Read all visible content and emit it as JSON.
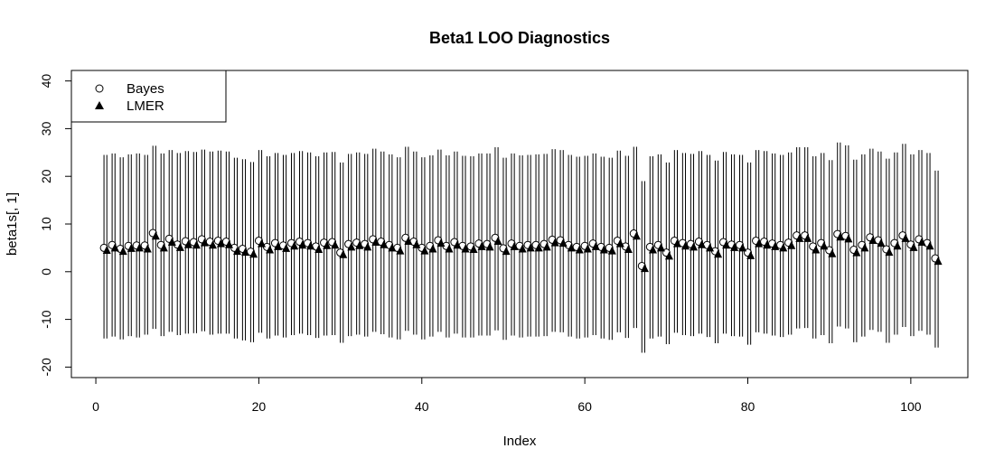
{
  "chart_data": {
    "type": "scatter",
    "title": "Beta1 LOO Diagnostics",
    "xlabel": "Index",
    "ylabel": "beta1s[, 1]",
    "xlim": [
      -3,
      107
    ],
    "ylim": [
      -22.2,
      42.2
    ],
    "x_ticks": [
      0,
      20,
      40,
      60,
      80,
      100
    ],
    "y_ticks": [
      -20,
      -10,
      0,
      10,
      20,
      30,
      40
    ],
    "grid": false,
    "legend": {
      "placement": "top-left",
      "entries": [
        "Bayes",
        "LMER"
      ]
    },
    "x_offset_lmer": 0.35,
    "series": [
      {
        "name": "Bayes",
        "marker": "open-circle",
        "values": [
          5.0,
          5.6,
          4.8,
          5.4,
          5.5,
          5.5,
          8.1,
          5.6,
          6.9,
          5.7,
          6.4,
          6.2,
          6.8,
          6.3,
          6.5,
          6.3,
          5.0,
          4.8,
          4.2,
          6.5,
          5.2,
          6.0,
          5.5,
          6.0,
          6.3,
          6.0,
          5.3,
          6.1,
          6.2,
          4.0,
          5.8,
          6.1,
          5.8,
          6.8,
          6.3,
          5.6,
          5.0,
          7.1,
          6.3,
          5.0,
          5.4,
          6.6,
          5.4,
          6.2,
          5.4,
          5.3,
          5.9,
          5.8,
          7.1,
          4.9,
          5.9,
          5.4,
          5.6,
          5.6,
          5.8,
          6.7,
          6.6,
          5.6,
          5.2,
          5.4,
          5.9,
          5.2,
          5.0,
          6.5,
          5.3,
          8.0,
          1.2,
          5.2,
          5.6,
          4.0,
          6.5,
          6.0,
          5.8,
          6.3,
          5.6,
          4.3,
          6.2,
          5.7,
          5.6,
          4.0,
          6.5,
          6.3,
          5.9,
          5.6,
          6.1,
          7.6,
          7.6,
          5.3,
          6.0,
          4.5,
          7.9,
          7.5,
          4.6,
          5.6,
          7.2,
          6.6,
          4.7,
          6.0,
          7.6,
          5.7,
          6.8,
          6.0,
          2.8
        ]
      },
      {
        "name": "LMER",
        "marker": "filled-triangle",
        "values": [
          4.5,
          5.0,
          4.3,
          4.9,
          5.0,
          4.8,
          7.5,
          5.0,
          6.2,
          5.1,
          5.7,
          5.6,
          6.1,
          5.6,
          5.9,
          5.7,
          4.3,
          4.1,
          3.7,
          5.9,
          4.6,
          5.3,
          4.9,
          5.4,
          5.6,
          5.4,
          4.7,
          5.5,
          5.6,
          3.6,
          5.2,
          5.5,
          5.2,
          6.2,
          5.7,
          5.0,
          4.4,
          6.4,
          5.7,
          4.4,
          4.8,
          6.0,
          4.8,
          5.6,
          4.8,
          4.7,
          5.3,
          5.2,
          6.4,
          4.3,
          5.3,
          4.8,
          5.0,
          5.0,
          5.2,
          6.1,
          6.0,
          5.0,
          4.6,
          4.8,
          5.3,
          4.6,
          4.4,
          5.9,
          4.7,
          7.5,
          0.7,
          4.6,
          5.0,
          3.3,
          5.9,
          5.4,
          5.2,
          5.7,
          5.0,
          3.7,
          5.6,
          5.1,
          5.0,
          3.4,
          5.9,
          5.6,
          5.3,
          5.0,
          5.5,
          7.0,
          7.0,
          4.6,
          5.4,
          3.8,
          7.3,
          6.9,
          4.0,
          5.0,
          6.6,
          6.0,
          4.1,
          5.4,
          7.0,
          5.1,
          6.2,
          5.4,
          2.2
        ]
      }
    ],
    "intervals": {
      "lower": [
        -14.0,
        -13.6,
        -14.2,
        -13.5,
        -13.8,
        -13.2,
        -12.0,
        -13.5,
        -12.6,
        -13.3,
        -13.0,
        -12.9,
        -12.5,
        -13.2,
        -13.0,
        -13.0,
        -14.0,
        -14.4,
        -14.8,
        -12.8,
        -14.0,
        -13.4,
        -13.8,
        -13.3,
        -13.0,
        -13.3,
        -13.9,
        -13.4,
        -13.3,
        -14.9,
        -13.5,
        -13.2,
        -13.6,
        -12.6,
        -13.1,
        -13.8,
        -14.2,
        -12.4,
        -13.2,
        -14.2,
        -13.6,
        -12.6,
        -13.8,
        -13.0,
        -13.8,
        -13.8,
        -13.4,
        -13.4,
        -12.3,
        -14.3,
        -13.4,
        -13.8,
        -13.6,
        -13.6,
        -13.5,
        -12.6,
        -12.7,
        -13.6,
        -14.0,
        -13.8,
        -13.3,
        -14.0,
        -14.3,
        -12.7,
        -13.9,
        -11.8,
        -17.0,
        -14.0,
        -13.6,
        -15.2,
        -12.8,
        -13.3,
        -13.5,
        -13.0,
        -13.7,
        -15.0,
        -13.0,
        -13.5,
        -13.6,
        -15.3,
        -12.7,
        -13.0,
        -13.4,
        -13.7,
        -13.2,
        -11.9,
        -11.8,
        -14.0,
        -13.3,
        -15.0,
        -11.5,
        -11.9,
        -14.8,
        -13.6,
        -12.2,
        -12.6,
        -14.9,
        -13.2,
        -11.6,
        -13.5,
        -12.4,
        -13.2,
        -15.9
      ],
      "upper": [
        24.5,
        24.8,
        24.0,
        24.6,
        24.8,
        24.5,
        26.4,
        24.8,
        25.5,
        24.9,
        25.3,
        25.1,
        25.6,
        25.2,
        25.4,
        25.2,
        23.9,
        23.6,
        23.0,
        25.5,
        24.2,
        24.9,
        24.5,
        24.9,
        25.3,
        25.0,
        24.2,
        25.0,
        25.1,
        22.9,
        24.7,
        25.0,
        24.7,
        25.8,
        25.2,
        24.6,
        24.0,
        26.2,
        25.2,
        24.0,
        24.4,
        25.6,
        24.4,
        25.2,
        24.3,
        24.2,
        24.8,
        24.8,
        26.1,
        23.9,
        24.8,
        24.4,
        24.5,
        24.6,
        24.7,
        25.7,
        25.5,
        24.5,
        24.1,
        24.3,
        24.8,
        24.1,
        23.9,
        25.4,
        24.3,
        26.2,
        19.0,
        24.2,
        24.6,
        22.9,
        25.5,
        24.9,
        24.7,
        25.3,
        24.5,
        23.3,
        25.1,
        24.6,
        24.5,
        22.9,
        25.5,
        25.3,
        24.8,
        24.5,
        25.0,
        26.1,
        26.1,
        24.2,
        24.9,
        23.4,
        27.1,
        26.5,
        23.5,
        24.6,
        25.8,
        25.2,
        23.7,
        25.0,
        26.8,
        24.6,
        25.5,
        24.9,
        21.2
      ]
    }
  }
}
